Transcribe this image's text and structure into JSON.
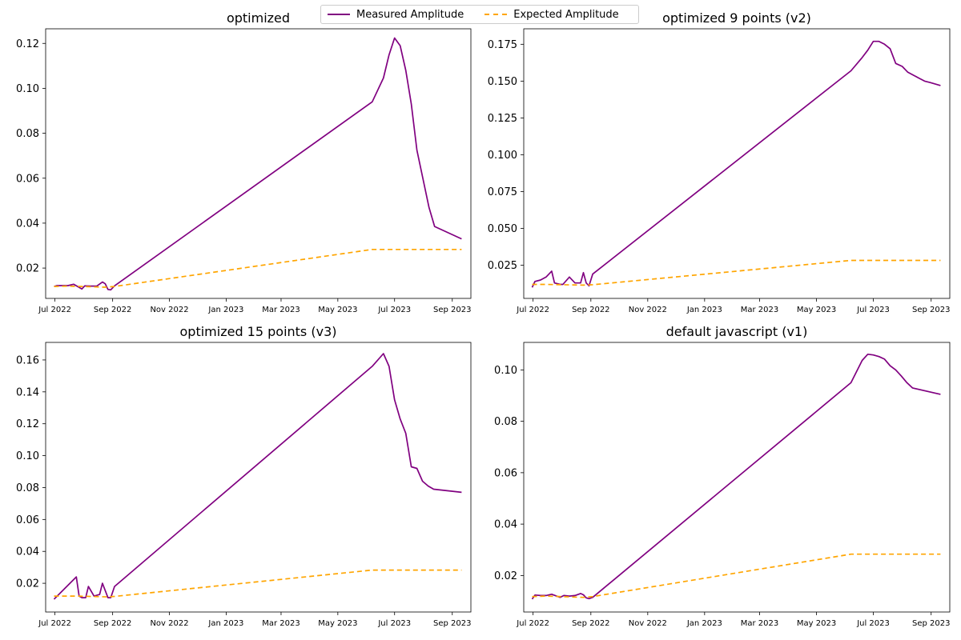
{
  "legend": {
    "measured_label": "Measured Amplitude",
    "expected_label": "Expected Amplitude"
  },
  "colors": {
    "measured": "#800080",
    "expected": "#ffa500"
  },
  "chart_data": [
    {
      "type": "line",
      "title": "optimized",
      "xlabel": "",
      "ylabel": "",
      "x_ticks": [
        "Jul 2022",
        "Sep 2022",
        "Nov 2022",
        "Jan 2023",
        "Mar 2023",
        "May 2023",
        "Jul 2023",
        "Sep 2023"
      ],
      "x_tick_dates": [
        "2022-07-01",
        "2022-09-01",
        "2022-11-01",
        "2023-01-01",
        "2023-03-01",
        "2023-05-01",
        "2023-07-01",
        "2023-09-01"
      ],
      "xlim": [
        "2022-06-21",
        "2023-09-21"
      ],
      "y_ticks": [
        "0.02",
        "0.04",
        "0.06",
        "0.08",
        "0.10",
        "0.12"
      ],
      "y_tick_values": [
        0.02,
        0.04,
        0.06,
        0.08,
        0.1,
        0.12
      ],
      "ylim": [
        0.0065,
        0.1265
      ],
      "grid": false,
      "series": [
        {
          "name": "Measured Amplitude",
          "x": [
            "2022-06-30",
            "2022-07-03",
            "2022-07-09",
            "2022-07-15",
            "2022-07-21",
            "2022-07-27",
            "2022-07-30",
            "2022-08-02",
            "2022-08-09",
            "2022-08-15",
            "2022-08-21",
            "2022-08-24",
            "2022-08-27",
            "2022-08-30",
            "2022-09-03",
            "2023-06-07",
            "2023-06-19",
            "2023-06-25",
            "2023-07-01",
            "2023-07-07",
            "2023-07-13",
            "2023-07-19",
            "2023-07-25",
            "2023-08-07",
            "2023-08-13",
            "2023-09-11"
          ],
          "y": [
            0.0118,
            0.0122,
            0.0122,
            0.0122,
            0.0128,
            0.0114,
            0.0107,
            0.0121,
            0.012,
            0.012,
            0.0138,
            0.013,
            0.0105,
            0.0103,
            0.0121,
            0.094,
            0.1046,
            0.1149,
            0.1224,
            0.119,
            0.108,
            0.093,
            0.0725,
            0.047,
            0.0385,
            0.033
          ]
        },
        {
          "name": "Expected Amplitude",
          "x": [
            "2022-06-30",
            "2022-07-15",
            "2022-08-24",
            "2022-09-03",
            "2023-06-07",
            "2023-09-11"
          ],
          "y": [
            0.0118,
            0.012,
            0.0115,
            0.0118,
            0.0283,
            0.0283
          ]
        }
      ]
    },
    {
      "type": "line",
      "title": "optimized 9 points (v2)",
      "xlabel": "",
      "ylabel": "",
      "x_ticks": [
        "Jul 2022",
        "Sep 2022",
        "Nov 2022",
        "Jan 2023",
        "Mar 2023",
        "May 2023",
        "Jul 2023",
        "Sep 2023"
      ],
      "x_tick_dates": [
        "2022-07-01",
        "2022-09-01",
        "2022-11-01",
        "2023-01-01",
        "2023-03-01",
        "2023-05-01",
        "2023-07-01",
        "2023-09-01"
      ],
      "xlim": [
        "2022-06-21",
        "2023-09-21"
      ],
      "y_ticks": [
        "0.025",
        "0.050",
        "0.075",
        "0.100",
        "0.125",
        "0.150",
        "0.175"
      ],
      "y_tick_values": [
        0.025,
        0.05,
        0.075,
        0.1,
        0.125,
        0.15,
        0.175
      ],
      "ylim": [
        0.0025,
        0.1855
      ],
      "grid": false,
      "series": [
        {
          "name": "Measured Amplitude",
          "x": [
            "2022-06-30",
            "2022-07-03",
            "2022-07-09",
            "2022-07-15",
            "2022-07-21",
            "2022-07-24",
            "2022-07-30",
            "2022-08-02",
            "2022-08-09",
            "2022-08-15",
            "2022-08-21",
            "2022-08-24",
            "2022-08-27",
            "2022-08-30",
            "2022-09-03",
            "2023-06-07",
            "2023-06-19",
            "2023-06-25",
            "2023-07-01",
            "2023-07-07",
            "2023-07-13",
            "2023-07-19",
            "2023-07-25",
            "2023-08-01",
            "2023-08-07",
            "2023-08-13",
            "2023-08-19",
            "2023-08-25",
            "2023-08-31",
            "2023-09-11"
          ],
          "y": [
            0.01,
            0.014,
            0.015,
            0.017,
            0.021,
            0.013,
            0.012,
            0.012,
            0.017,
            0.013,
            0.013,
            0.02,
            0.013,
            0.011,
            0.019,
            0.157,
            0.166,
            0.171,
            0.177,
            0.177,
            0.175,
            0.172,
            0.162,
            0.16,
            0.156,
            0.154,
            0.152,
            0.15,
            0.149,
            0.147
          ]
        },
        {
          "name": "Expected Amplitude",
          "x": [
            "2022-06-30",
            "2022-07-15",
            "2022-08-24",
            "2022-09-03",
            "2023-06-07",
            "2023-09-11"
          ],
          "y": [
            0.012,
            0.012,
            0.0115,
            0.0118,
            0.0283,
            0.0283
          ]
        }
      ]
    },
    {
      "type": "line",
      "title": "optimized 15 points (v3)",
      "xlabel": "",
      "ylabel": "",
      "x_ticks": [
        "Jul 2022",
        "Sep 2022",
        "Nov 2022",
        "Jan 2023",
        "Mar 2023",
        "May 2023",
        "Jul 2023",
        "Sep 2023"
      ],
      "x_tick_dates": [
        "2022-07-01",
        "2022-09-01",
        "2022-11-01",
        "2023-01-01",
        "2023-03-01",
        "2023-05-01",
        "2023-07-01",
        "2023-09-01"
      ],
      "xlim": [
        "2022-06-21",
        "2023-09-21"
      ],
      "y_ticks": [
        "0.02",
        "0.04",
        "0.06",
        "0.08",
        "0.10",
        "0.12",
        "0.14",
        "0.16"
      ],
      "y_tick_values": [
        0.02,
        0.04,
        0.06,
        0.08,
        0.1,
        0.12,
        0.14,
        0.16
      ],
      "ylim": [
        0.002,
        0.171
      ],
      "grid": false,
      "series": [
        {
          "name": "Measured Amplitude",
          "x": [
            "2022-06-30",
            "2022-07-24",
            "2022-07-27",
            "2022-07-30",
            "2022-08-03",
            "2022-08-06",
            "2022-08-12",
            "2022-08-18",
            "2022-08-21",
            "2022-08-27",
            "2022-08-30",
            "2022-09-03",
            "2023-06-07",
            "2023-06-19",
            "2023-06-25",
            "2023-07-01",
            "2023-07-07",
            "2023-07-13",
            "2023-07-19",
            "2023-07-25",
            "2023-07-31",
            "2023-08-06",
            "2023-08-12",
            "2023-09-11"
          ],
          "y": [
            0.01,
            0.024,
            0.012,
            0.011,
            0.011,
            0.018,
            0.012,
            0.013,
            0.02,
            0.011,
            0.011,
            0.018,
            0.156,
            0.164,
            0.156,
            0.135,
            0.123,
            0.114,
            0.093,
            0.092,
            0.084,
            0.081,
            0.079,
            0.077
          ]
        },
        {
          "name": "Expected Amplitude",
          "x": [
            "2022-06-30",
            "2022-07-24",
            "2022-08-27",
            "2022-09-03",
            "2023-06-07",
            "2023-09-11"
          ],
          "y": [
            0.012,
            0.012,
            0.0115,
            0.0118,
            0.0283,
            0.0283
          ]
        }
      ]
    },
    {
      "type": "line",
      "title": "default javascript (v1)",
      "xlabel": "",
      "ylabel": "",
      "x_ticks": [
        "Jul 2022",
        "Sep 2022",
        "Nov 2022",
        "Jan 2023",
        "Mar 2023",
        "May 2023",
        "Jul 2023",
        "Sep 2023"
      ],
      "x_tick_dates": [
        "2022-07-01",
        "2022-09-01",
        "2022-11-01",
        "2023-01-01",
        "2023-03-01",
        "2023-05-01",
        "2023-07-01",
        "2023-09-01"
      ],
      "xlim": [
        "2022-06-21",
        "2023-09-21"
      ],
      "y_ticks": [
        "0.02",
        "0.04",
        "0.06",
        "0.08",
        "0.10"
      ],
      "y_tick_values": [
        0.02,
        0.04,
        0.06,
        0.08,
        0.1
      ],
      "ylim": [
        0.0058,
        0.1107
      ],
      "grid": false,
      "series": [
        {
          "name": "Measured Amplitude",
          "x": [
            "2022-06-30",
            "2022-07-03",
            "2022-07-09",
            "2022-07-15",
            "2022-07-21",
            "2022-07-27",
            "2022-07-30",
            "2022-08-03",
            "2022-08-09",
            "2022-08-15",
            "2022-08-21",
            "2022-08-24",
            "2022-08-27",
            "2022-08-30",
            "2022-09-03",
            "2023-06-07",
            "2023-06-19",
            "2023-06-25",
            "2023-07-01",
            "2023-07-07",
            "2023-07-13",
            "2023-07-19",
            "2023-07-25",
            "2023-07-31",
            "2023-08-06",
            "2023-08-12",
            "2023-09-11"
          ],
          "y": [
            0.0108,
            0.0124,
            0.0122,
            0.0122,
            0.0127,
            0.0119,
            0.0115,
            0.0122,
            0.012,
            0.0122,
            0.013,
            0.0125,
            0.0113,
            0.011,
            0.0115,
            0.095,
            0.1037,
            0.1061,
            0.1058,
            0.1052,
            0.1042,
            0.1016,
            0.1,
            0.0976,
            0.095,
            0.093,
            0.0905
          ]
        },
        {
          "name": "Expected Amplitude",
          "x": [
            "2022-06-30",
            "2022-07-15",
            "2022-08-24",
            "2022-09-03",
            "2023-06-07",
            "2023-09-11"
          ],
          "y": [
            0.0118,
            0.012,
            0.0115,
            0.0118,
            0.0283,
            0.0283
          ]
        }
      ]
    }
  ]
}
